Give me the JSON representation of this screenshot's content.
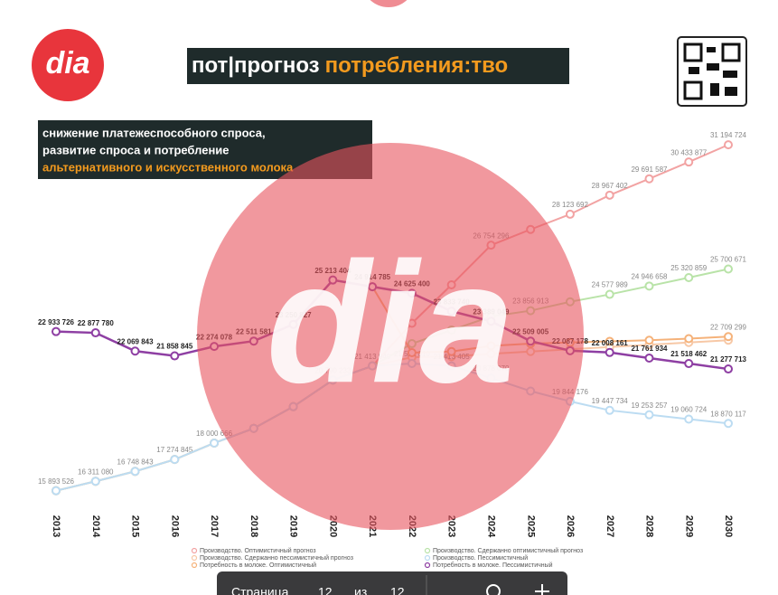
{
  "header": {
    "logo": "dia",
    "title_part1": "пот|прогноз",
    "title_part2": "потребления:тво",
    "subtitle": [
      "снижение платежеспособного спроса,",
      "развитие спроса и потребление",
      "альтернативного и искусственного молока"
    ]
  },
  "watermark": "dia",
  "toolbar": {
    "label": "Страница",
    "page": "12",
    "of": "из",
    "total": "12"
  },
  "chart_data": {
    "type": "line",
    "categories": [
      "2013",
      "2014",
      "2015",
      "2016",
      "2017",
      "2018",
      "2019",
      "2020",
      "2021",
      "2022",
      "2023",
      "2024",
      "2025",
      "2026",
      "2027",
      "2028",
      "2029",
      "2030"
    ],
    "ylim": [
      15000000,
      32000000
    ],
    "series": [
      {
        "name": "Производство. Оптимистичный прогноз",
        "color": "#f2a3a3",
        "values": [
          15893526,
          16311080,
          16748843,
          17274845,
          18000666,
          18651628,
          19613466,
          20790233,
          21413940,
          23300000,
          25000000,
          26754296,
          27450000,
          28123692,
          28967402,
          29691587,
          30433877,
          31194724
        ],
        "value_labels": [
          "15 893 526",
          "16 311 080",
          "16 748 843",
          "17 274 845",
          "18 000 666",
          null,
          null,
          "20 790 233",
          "21 413 940",
          null,
          null,
          "26 754 296",
          null,
          "28 123 692",
          "28 967 402",
          "29 691 587",
          "30 433 877",
          "31 194 724"
        ]
      },
      {
        "name": "Производство. Сдержанно оптимистичный прогноз",
        "color": "#b9e3a8",
        "values": [
          15893526,
          16311080,
          16748843,
          17274845,
          18000666,
          18651628,
          19613466,
          20790233,
          21413940,
          22400000,
          23000000,
          23600000,
          23856913,
          24250000,
          24577989,
          24946658,
          25320859,
          25700671
        ],
        "value_labels": [
          null,
          null,
          null,
          null,
          null,
          null,
          null,
          null,
          null,
          null,
          null,
          null,
          "23 856 913",
          null,
          "24 577 989",
          "24 946 658",
          "25 320 859",
          "25 700 671"
        ]
      },
      {
        "name": "Производство. Сдержанно пессимистичный прогноз",
        "color": "#f7c8a6",
        "values": [
          15893526,
          16311080,
          16748843,
          17274845,
          18000666,
          18651628,
          19613466,
          20790233,
          21413940,
          21800000,
          21826615,
          21950000,
          22050000,
          22150000,
          22250000,
          22350000,
          22450000,
          22550000
        ]
      },
      {
        "name": "Производство. Пессимистичный",
        "color": "#bcdcf2",
        "values": [
          15893526,
          16311080,
          16748843,
          17274845,
          18000666,
          18651628,
          19613466,
          20790233,
          21413940,
          21521010,
          21413405,
          20878070,
          20300000,
          19844176,
          19447734,
          19253257,
          19060724,
          18870117
        ],
        "value_labels": [
          null,
          null,
          null,
          null,
          null,
          null,
          null,
          null,
          null,
          "21 521 010",
          "21 413 405",
          "20 878 070",
          null,
          "19 844 176",
          "19 447 734",
          "19 253 257",
          "19 060 724",
          "18 870 117"
        ]
      },
      {
        "name": "Потребность в молоке. Оптимистичный",
        "color": "#f5b27a",
        "values": [
          null,
          null,
          null,
          null,
          null,
          null,
          null,
          null,
          24914785,
          22000000,
          22050000,
          22300000,
          22400000,
          22450000,
          22500000,
          22550000,
          22620000,
          22709299
        ],
        "value_labels": [
          null,
          null,
          null,
          null,
          null,
          null,
          null,
          null,
          null,
          null,
          null,
          null,
          null,
          null,
          null,
          null,
          null,
          "22 709 299"
        ]
      },
      {
        "name": "Потребность в молоке. Пессимистичный",
        "color": "#8e3fa3",
        "values": [
          22933726,
          22877780,
          22069843,
          21858845,
          22274078,
          22511581,
          23250827,
          25213404,
          24914785,
          24625400,
          23833740,
          23389049,
          22509005,
          22087178,
          22008161,
          21761934,
          21518462,
          21277713
        ],
        "value_labels": [
          "22 933 726",
          "22 877 780",
          "22 069 843",
          "21 858 845",
          "22 274 078",
          "22 511 581",
          "23 250 827",
          "25 213 404",
          "24 914 785",
          "24 625 400",
          "23 833 740",
          "23 389 049",
          "22 509 005",
          "22 087 178",
          "22 008 161",
          "21 761 934",
          "21 518 462",
          "21 277 713"
        ]
      }
    ]
  }
}
